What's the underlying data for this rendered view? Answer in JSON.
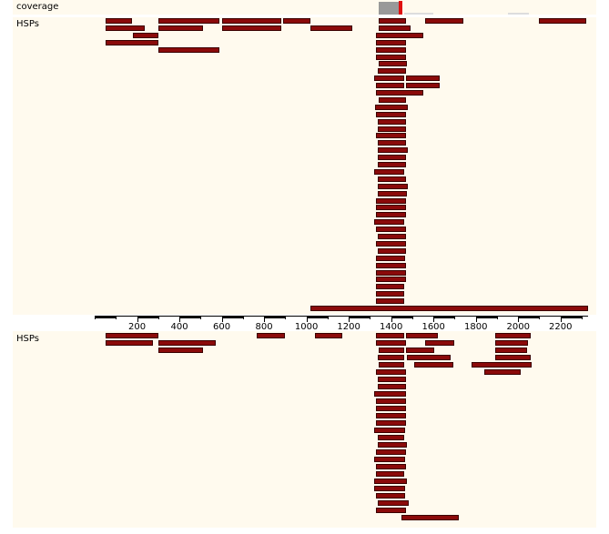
{
  "tracks": {
    "coverage_label": "coverage",
    "upper_label": "HSPs",
    "lower_label": "HSPs"
  },
  "axis": {
    "min": 0,
    "max": 2330,
    "ticks": [
      {
        "value": 200,
        "label": "200"
      },
      {
        "value": 400,
        "label": "400"
      },
      {
        "value": 600,
        "label": "600"
      },
      {
        "value": 800,
        "label": "800"
      },
      {
        "value": 1000,
        "label": "1000"
      },
      {
        "value": 1200,
        "label": "1200"
      },
      {
        "value": 1400,
        "label": "1400"
      },
      {
        "value": 1600,
        "label": "1600"
      },
      {
        "value": 1800,
        "label": "1800"
      },
      {
        "value": 2000,
        "label": "2000"
      },
      {
        "value": 2200,
        "label": "2200"
      }
    ]
  },
  "colors": {
    "hsp_fill": "#8b0a0a",
    "hsp_border": "#3a0000",
    "coverage_gray": "#999999",
    "coverage_peak": "#e01010",
    "track_background": "#fffaee"
  },
  "coverage": {
    "segments": [
      {
        "start": 1340,
        "end": 1435,
        "level": "high"
      },
      {
        "start": 1435,
        "end": 1460,
        "level": "peak"
      },
      {
        "start": 1460,
        "end": 1600,
        "level": "low"
      },
      {
        "start": 1950,
        "end": 2050,
        "level": "low"
      }
    ]
  },
  "upper_hsps": [
    {
      "start": 1340,
      "end": 1470
    },
    {
      "start": 1340,
      "end": 1490
    },
    {
      "start": 1330,
      "end": 1550
    },
    {
      "start": 1330,
      "end": 1470
    },
    {
      "start": 1330,
      "end": 1470
    },
    {
      "start": 1330,
      "end": 1470
    },
    {
      "start": 1340,
      "end": 1475
    },
    {
      "start": 1335,
      "end": 1470
    },
    {
      "start": 1320,
      "end": 1460
    },
    {
      "start": 1330,
      "end": 1460
    },
    {
      "start": 1330,
      "end": 1550
    },
    {
      "start": 1340,
      "end": 1470
    },
    {
      "start": 1325,
      "end": 1480
    },
    {
      "start": 1330,
      "end": 1470
    },
    {
      "start": 1335,
      "end": 1470
    },
    {
      "start": 1335,
      "end": 1470
    },
    {
      "start": 1330,
      "end": 1470
    },
    {
      "start": 1335,
      "end": 1470
    },
    {
      "start": 1335,
      "end": 1480
    },
    {
      "start": 1335,
      "end": 1470
    },
    {
      "start": 1335,
      "end": 1470
    },
    {
      "start": 1320,
      "end": 1460
    },
    {
      "start": 1335,
      "end": 1470
    },
    {
      "start": 1335,
      "end": 1480
    },
    {
      "start": 1335,
      "end": 1475
    },
    {
      "start": 1330,
      "end": 1470
    },
    {
      "start": 1330,
      "end": 1470
    },
    {
      "start": 1330,
      "end": 1470
    },
    {
      "start": 1320,
      "end": 1460
    },
    {
      "start": 1330,
      "end": 1470
    },
    {
      "start": 1335,
      "end": 1470
    },
    {
      "start": 1330,
      "end": 1470
    },
    {
      "start": 1335,
      "end": 1470
    },
    {
      "start": 1330,
      "end": 1465
    },
    {
      "start": 1330,
      "end": 1470
    },
    {
      "start": 1330,
      "end": 1470
    },
    {
      "start": 300,
      "end": 590
    },
    {
      "start": 1330,
      "end": 1470
    },
    {
      "start": 300,
      "end": 510
    },
    {
      "start": 600,
      "end": 880
    },
    {
      "start": 1330,
      "end": 1460
    },
    {
      "start": 1560,
      "end": 1740
    },
    {
      "start": 50,
      "end": 175
    },
    {
      "start": 180,
      "end": 300
    },
    {
      "start": 890,
      "end": 1020
    },
    {
      "start": 1330,
      "end": 1460
    },
    {
      "start": 1470,
      "end": 1630
    },
    {
      "start": 50,
      "end": 300
    },
    {
      "start": 600,
      "end": 880
    },
    {
      "start": 1020,
      "end": 1215
    },
    {
      "start": 1330,
      "end": 1460
    },
    {
      "start": 1470,
      "end": 1630
    },
    {
      "start": 2100,
      "end": 2320
    },
    {
      "start": 50,
      "end": 235
    },
    {
      "start": 300,
      "end": 590
    },
    {
      "start": 1020,
      "end": 2330
    }
  ],
  "lower_hsps": [
    {
      "start": 50,
      "end": 300
    },
    {
      "start": 765,
      "end": 900
    },
    {
      "start": 1040,
      "end": 1170
    },
    {
      "start": 1330,
      "end": 1460
    },
    {
      "start": 1470,
      "end": 1620
    },
    {
      "start": 1890,
      "end": 2060
    },
    {
      "start": 50,
      "end": 275
    },
    {
      "start": 300,
      "end": 570
    },
    {
      "start": 1330,
      "end": 1470
    },
    {
      "start": 1560,
      "end": 1700
    },
    {
      "start": 1890,
      "end": 2045
    },
    {
      "start": 300,
      "end": 510
    },
    {
      "start": 1340,
      "end": 1460
    },
    {
      "start": 1470,
      "end": 1605
    },
    {
      "start": 1890,
      "end": 2040
    },
    {
      "start": 1335,
      "end": 1460
    },
    {
      "start": 1475,
      "end": 1680
    },
    {
      "start": 1890,
      "end": 2060
    },
    {
      "start": 1340,
      "end": 1460
    },
    {
      "start": 1510,
      "end": 1695
    },
    {
      "start": 1780,
      "end": 2065
    },
    {
      "start": 1330,
      "end": 1470
    },
    {
      "start": 1840,
      "end": 2010
    },
    {
      "start": 1335,
      "end": 1470
    },
    {
      "start": 1335,
      "end": 1470
    },
    {
      "start": 1320,
      "end": 1470
    },
    {
      "start": 1330,
      "end": 1470
    },
    {
      "start": 1330,
      "end": 1470
    },
    {
      "start": 1330,
      "end": 1470
    },
    {
      "start": 1330,
      "end": 1470
    },
    {
      "start": 1320,
      "end": 1465
    },
    {
      "start": 1335,
      "end": 1460
    },
    {
      "start": 1335,
      "end": 1475
    },
    {
      "start": 1330,
      "end": 1470
    },
    {
      "start": 1320,
      "end": 1465
    },
    {
      "start": 1330,
      "end": 1470
    },
    {
      "start": 1330,
      "end": 1460
    },
    {
      "start": 1320,
      "end": 1475
    },
    {
      "start": 1320,
      "end": 1465
    },
    {
      "start": 1330,
      "end": 1465
    },
    {
      "start": 1335,
      "end": 1485
    },
    {
      "start": 1330,
      "end": 1470
    },
    {
      "start": 1450,
      "end": 1720
    }
  ]
}
